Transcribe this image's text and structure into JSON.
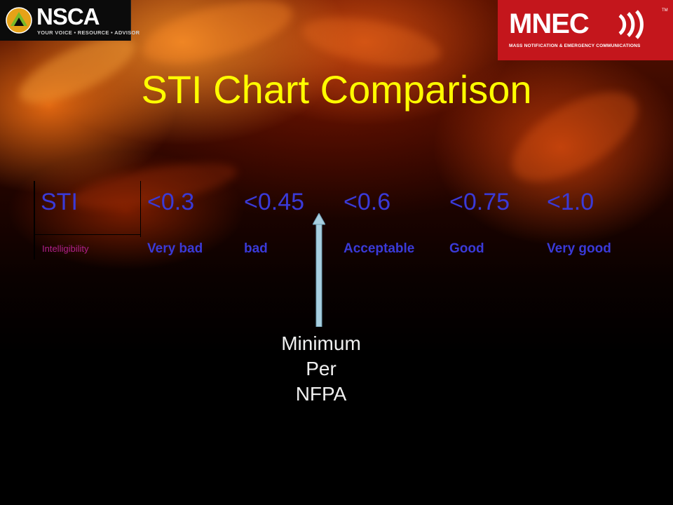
{
  "logos": {
    "nsca": {
      "name": "NSCA",
      "tagline": "YOUR VOICE • RESOURCE • ADVISOR"
    },
    "mnec": {
      "name": "MNEC",
      "tm": "TM",
      "tagline": "MASS NOTIFICATION & EMERGENCY COMMUNICATIONS"
    }
  },
  "title": "STI Chart Comparison",
  "table": {
    "header_label": "STI",
    "sub_label": "Intelligibility",
    "columns": [
      {
        "range": "<0.3",
        "rating": "Very bad"
      },
      {
        "range": "<0.45",
        "rating": "bad"
      },
      {
        "range": "<0.6",
        "rating": "Acceptable"
      },
      {
        "range": "<0.75",
        "rating": "Good"
      },
      {
        "range": "<1.0",
        "rating": "Very good"
      }
    ]
  },
  "annotation": {
    "lines": [
      "Minimum",
      "Per",
      "NFPA"
    ]
  },
  "colors": {
    "title": "#ffff00",
    "table_text": "#3a3ad8",
    "intelligibility_label": "#b0208a",
    "arrow": "#a8cfe0",
    "caption": "#f0f0f0",
    "mnec_brand": "#c4161c"
  }
}
